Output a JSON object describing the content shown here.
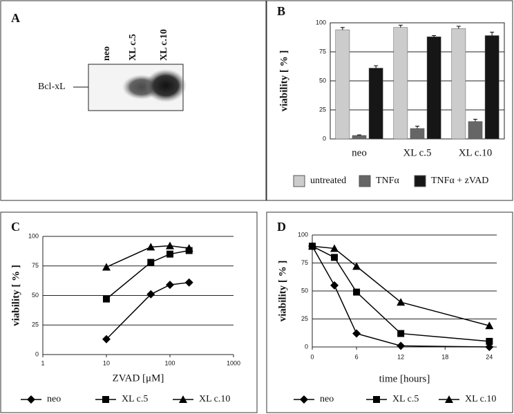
{
  "blot": {
    "panel_label": "A",
    "lanes": [
      "neo",
      "XL c.5",
      "XL c.10"
    ],
    "band_label": "Bcl-xL"
  },
  "chart_data": [
    {
      "type": "bar",
      "panel_label": "B",
      "ylabel": "viability [ % ]",
      "categories": [
        "neo",
        "XL c.5",
        "XL c.10"
      ],
      "series": [
        {
          "name": "untreated",
          "color": "#cccccc",
          "values": [
            94,
            96,
            95
          ],
          "errors": [
            2,
            2,
            2
          ]
        },
        {
          "name": "TNFα",
          "color": "#666666",
          "values": [
            3,
            9,
            15
          ],
          "errors": [
            0.5,
            2,
            2
          ]
        },
        {
          "name": "TNFα + zVAD",
          "color": "#161616",
          "values": [
            61,
            88,
            89
          ],
          "errors": [
            2,
            1,
            3
          ]
        }
      ],
      "ylim": [
        0,
        100
      ],
      "yticks": [
        0,
        25,
        50,
        75,
        100
      ],
      "grid": true
    },
    {
      "type": "line",
      "panel_label": "C",
      "ylabel": "viability [ % ]",
      "xlabel": "ZVAD [μM]",
      "x": [
        10,
        50,
        100,
        200
      ],
      "xscale": "log",
      "xlim": [
        1,
        1000
      ],
      "xticks": [
        1,
        10,
        100,
        1000
      ],
      "series": [
        {
          "name": "neo",
          "color": "#000000",
          "marker": "diamond",
          "values": [
            13,
            51,
            59,
            61
          ]
        },
        {
          "name": "XL c.5",
          "color": "#000000",
          "marker": "square",
          "values": [
            47,
            78,
            85,
            88
          ]
        },
        {
          "name": "XL c.10",
          "color": "#000000",
          "marker": "triangle",
          "values": [
            74,
            91,
            92,
            90
          ]
        }
      ],
      "ylim": [
        0,
        100
      ],
      "yticks": [
        0,
        25,
        50,
        75,
        100
      ],
      "grid": true
    },
    {
      "type": "line",
      "panel_label": "D",
      "ylabel": "viability [ % ]",
      "xlabel": "time [hours]",
      "x": [
        0,
        3,
        6,
        12,
        24
      ],
      "xlim": [
        0,
        25
      ],
      "xticks": [
        0,
        6,
        12,
        18,
        24
      ],
      "series": [
        {
          "name": "neo",
          "color": "#000000",
          "marker": "diamond",
          "values": [
            90,
            55,
            12,
            1,
            0
          ]
        },
        {
          "name": "XL c.5",
          "color": "#000000",
          "marker": "square",
          "values": [
            90,
            80,
            49,
            12,
            5
          ]
        },
        {
          "name": "XL c.10",
          "color": "#000000",
          "marker": "triangle",
          "values": [
            90,
            88,
            72,
            40,
            19
          ]
        }
      ],
      "ylim": [
        0,
        100
      ],
      "yticks": [
        0,
        25,
        50,
        75,
        100
      ],
      "grid": true
    }
  ]
}
